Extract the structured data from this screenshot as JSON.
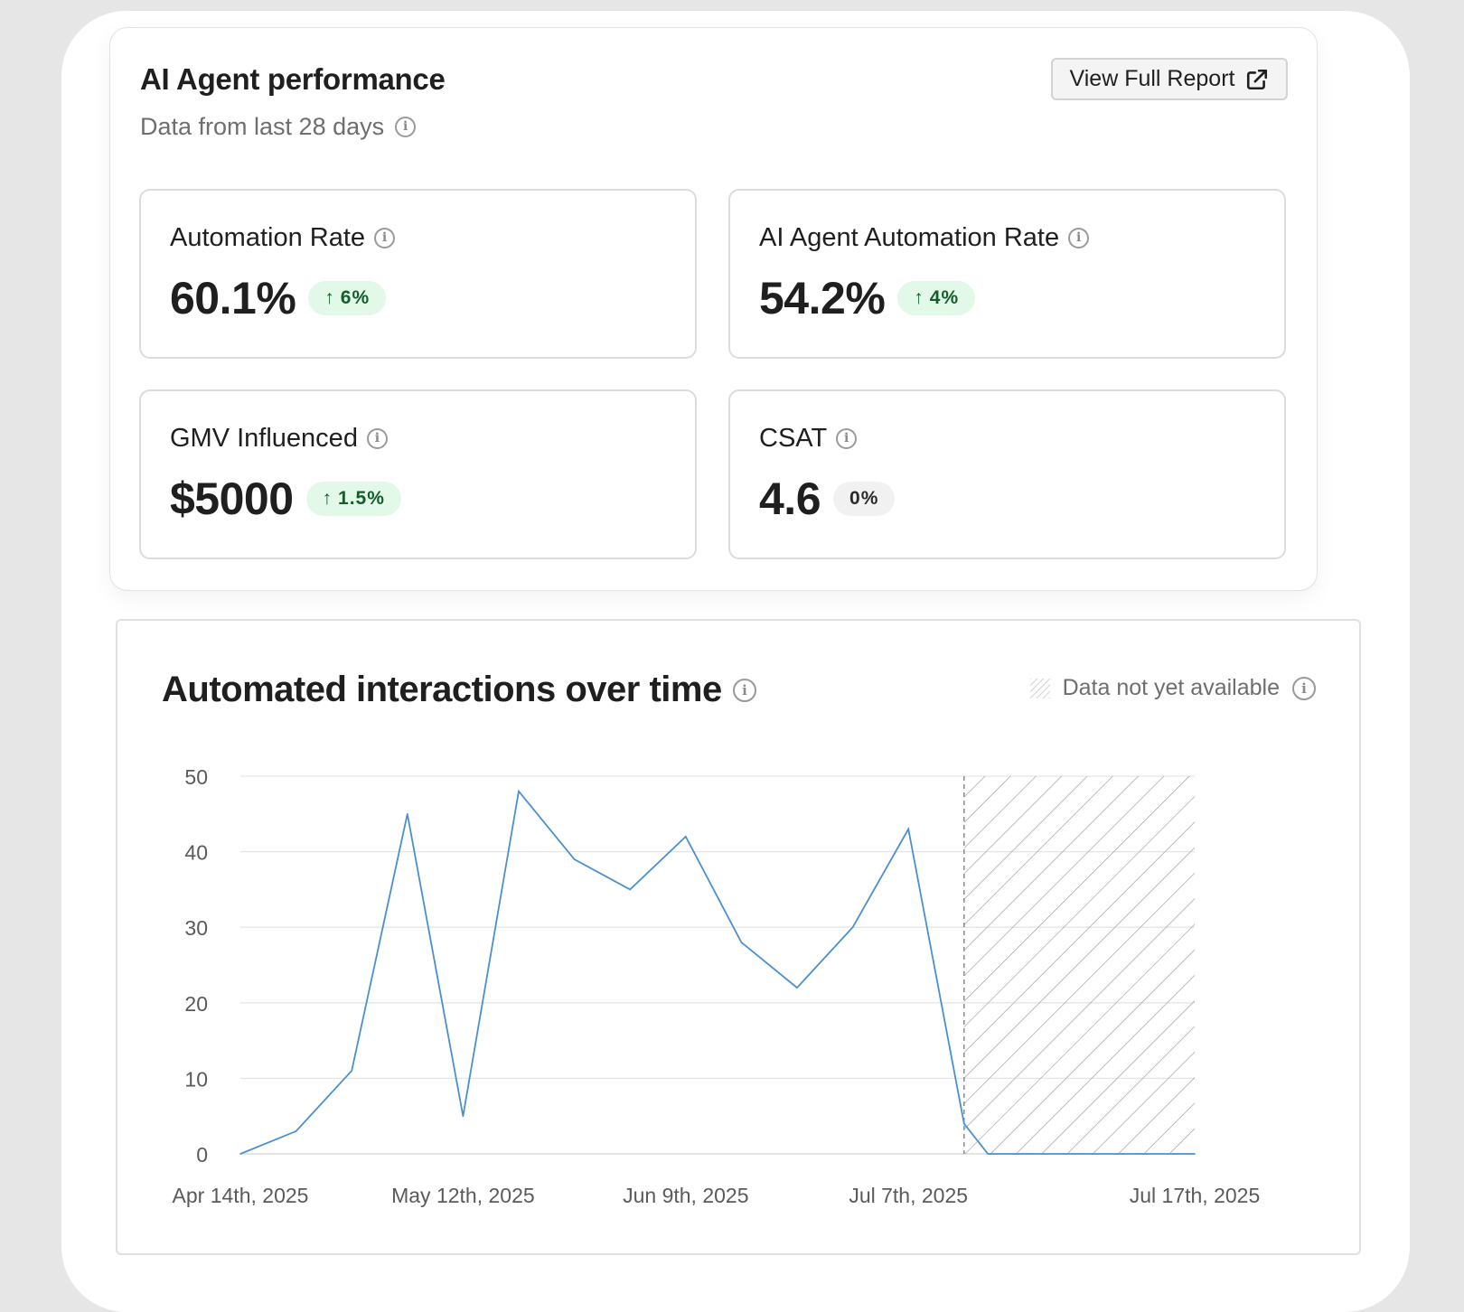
{
  "performance": {
    "title": "AI Agent performance",
    "subtitle": "Data from last 28 days",
    "report_button": "View Full Report",
    "metrics": [
      {
        "label": "Automation Rate",
        "value": "60.1%",
        "change": "6%",
        "trend": "up"
      },
      {
        "label": "AI Agent Automation Rate",
        "value": "54.2%",
        "change": "4%",
        "trend": "up"
      },
      {
        "label": "GMV Influenced",
        "value": "$5000",
        "change": "1.5%",
        "trend": "up"
      },
      {
        "label": "CSAT",
        "value": "4.6",
        "change": "0%",
        "trend": "none"
      }
    ]
  },
  "chart_card": {
    "title": "Automated interactions over time",
    "legend_unavailable": "Data not yet available"
  },
  "chart_data": {
    "type": "line",
    "title": "Automated interactions over time",
    "x_tick_labels": [
      "Apr 14th, 2025",
      "May 12th, 2025",
      "Jun 9th, 2025",
      "Jul 7th, 2025",
      "Jul 17th, 2025"
    ],
    "x": [
      "2025-04-14",
      "2025-04-21",
      "2025-04-28",
      "2025-05-05",
      "2025-05-12",
      "2025-05-19",
      "2025-05-26",
      "2025-06-02",
      "2025-06-09",
      "2025-06-16",
      "2025-06-23",
      "2025-06-30",
      "2025-07-07",
      "2025-07-14",
      "2025-07-17",
      "2025-07-22",
      "2025-07-29",
      "2025-08-05",
      "2025-08-12"
    ],
    "series": [
      {
        "values": [
          0,
          3,
          11,
          45,
          5,
          48,
          39,
          35,
          42,
          28,
          22,
          30,
          43,
          4,
          0,
          0,
          0,
          0,
          0
        ]
      }
    ],
    "ylim": [
      0,
      50
    ],
    "y_ticks": [
      0,
      10,
      20,
      30,
      40,
      50
    ],
    "grid": true,
    "unavailable_from": "2025-07-14",
    "colors": {
      "line": "#4a90d0",
      "grid": "#e5e5e5",
      "hatch": "#9a9a9a"
    }
  }
}
